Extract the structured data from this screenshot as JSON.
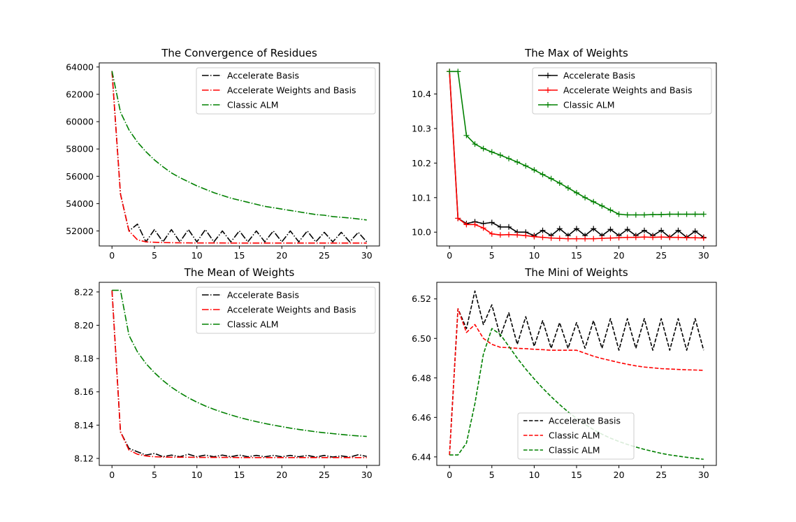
{
  "chart_data": [
    {
      "type": "line",
      "title": "The Convergence of Residues",
      "xlabel": "",
      "ylabel": "",
      "xlim": [
        -1.5,
        31.5
      ],
      "ylim": [
        50900,
        64300
      ],
      "xticks": [
        0,
        5,
        10,
        15,
        20,
        25,
        30
      ],
      "yticks": [
        52000,
        54000,
        56000,
        58000,
        60000,
        62000,
        64000
      ],
      "ytick_labels": [
        "52000",
        "54000",
        "56000",
        "58000",
        "60000",
        "62000",
        "64000"
      ],
      "legend_position": "top-right",
      "x": [
        0,
        1,
        2,
        3,
        4,
        5,
        6,
        7,
        8,
        9,
        10,
        11,
        12,
        13,
        14,
        15,
        16,
        17,
        18,
        19,
        20,
        21,
        22,
        23,
        24,
        25,
        26,
        27,
        28,
        29,
        30
      ],
      "series": [
        {
          "name": "Accelerate Basis",
          "color": "#000000",
          "dash": "dashdot",
          "marker": "none",
          "values": [
            63700,
            54700,
            52000,
            52500,
            51200,
            52100,
            51200,
            52100,
            51200,
            52100,
            51200,
            52100,
            51200,
            52000,
            51200,
            52000,
            51200,
            52000,
            51200,
            52000,
            51200,
            52000,
            51200,
            52000,
            51200,
            51900,
            51200,
            51900,
            51200,
            51900,
            51200
          ]
        },
        {
          "name": "Accelerate Weights and Basis",
          "color": "#ff0000",
          "dash": "dashdot",
          "marker": "none",
          "values": [
            63700,
            54700,
            52000,
            51350,
            51200,
            51170,
            51150,
            51140,
            51130,
            51125,
            51120,
            51120,
            51120,
            51120,
            51115,
            51115,
            51115,
            51115,
            51115,
            51115,
            51115,
            51115,
            51115,
            51115,
            51115,
            51115,
            51115,
            51115,
            51115,
            51115,
            51115
          ]
        },
        {
          "name": "Classic ALM",
          "color": "#008000",
          "dash": "dashdot",
          "marker": "none",
          "values": [
            63700,
            60700,
            59400,
            58500,
            57800,
            57200,
            56700,
            56250,
            55900,
            55600,
            55300,
            55050,
            54800,
            54600,
            54400,
            54250,
            54100,
            53950,
            53800,
            53700,
            53600,
            53500,
            53400,
            53300,
            53200,
            53150,
            53050,
            53000,
            52950,
            52880,
            52800
          ]
        }
      ]
    },
    {
      "type": "line",
      "title": "The Max of Weights",
      "xlabel": "",
      "ylabel": "",
      "xlim": [
        -1.5,
        31.5
      ],
      "ylim": [
        9.96,
        10.49
      ],
      "xticks": [
        0,
        5,
        10,
        15,
        20,
        25,
        30
      ],
      "yticks": [
        10.0,
        10.1,
        10.2,
        10.3,
        10.4
      ],
      "ytick_labels": [
        "10.0",
        "10.1",
        "10.2",
        "10.3",
        "10.4"
      ],
      "legend_position": "top-right",
      "x": [
        0,
        1,
        2,
        3,
        4,
        5,
        6,
        7,
        8,
        9,
        10,
        11,
        12,
        13,
        14,
        15,
        16,
        17,
        18,
        19,
        20,
        21,
        22,
        23,
        24,
        25,
        26,
        27,
        28,
        29,
        30
      ],
      "series": [
        {
          "name": "Accelerate Basis",
          "color": "#000000",
          "dash": "solid",
          "marker": "plus",
          "values": [
            10.465,
            10.04,
            10.025,
            10.03,
            10.025,
            10.028,
            10.015,
            10.015,
            10.0,
            10.0,
            9.99,
            10.005,
            9.99,
            10.01,
            9.99,
            10.01,
            9.99,
            10.01,
            9.99,
            10.008,
            9.99,
            10.008,
            9.99,
            10.005,
            9.99,
            10.005,
            9.985,
            10.005,
            9.985,
            10.003,
            9.985
          ]
        },
        {
          "name": "Accelerate Weights and Basis",
          "color": "#ff0000",
          "dash": "solid",
          "marker": "plus",
          "values": [
            10.465,
            10.04,
            10.022,
            10.022,
            10.012,
            9.995,
            9.992,
            9.993,
            9.992,
            9.99,
            9.987,
            9.985,
            9.983,
            9.982,
            9.981,
            9.981,
            9.981,
            9.981,
            9.982,
            9.983,
            9.984,
            9.985,
            9.985,
            9.986,
            9.985,
            9.986,
            9.985,
            9.985,
            9.984,
            9.984,
            9.983
          ]
        },
        {
          "name": "Classic ALM",
          "color": "#008000",
          "dash": "solid",
          "marker": "plus",
          "values": [
            10.465,
            10.465,
            10.28,
            10.255,
            10.242,
            10.232,
            10.223,
            10.213,
            10.203,
            10.192,
            10.18,
            10.167,
            10.155,
            10.142,
            10.128,
            10.114,
            10.1,
            10.088,
            10.076,
            10.064,
            10.052,
            10.05,
            10.05,
            10.05,
            10.051,
            10.051,
            10.052,
            10.052,
            10.052,
            10.052,
            10.052
          ]
        }
      ]
    },
    {
      "type": "line",
      "title": "The Mean of Weights",
      "xlabel": "",
      "ylabel": "",
      "xlim": [
        -1.5,
        31.5
      ],
      "ylim": [
        8.1158,
        8.2258
      ],
      "xticks": [
        0,
        5,
        10,
        15,
        20,
        25,
        30
      ],
      "yticks": [
        8.12,
        8.14,
        8.16,
        8.18,
        8.2,
        8.22
      ],
      "ytick_labels": [
        "8.12",
        "8.14",
        "8.16",
        "8.18",
        "8.20",
        "8.22"
      ],
      "legend_position": "top-right",
      "x": [
        0,
        1,
        2,
        3,
        4,
        5,
        6,
        7,
        8,
        9,
        10,
        11,
        12,
        13,
        14,
        15,
        16,
        17,
        18,
        19,
        20,
        21,
        22,
        23,
        24,
        25,
        26,
        27,
        28,
        29,
        30
      ],
      "series": [
        {
          "name": "Accelerate Basis",
          "color": "#000000",
          "dash": "dashdot",
          "marker": "none",
          "values": [
            8.221,
            8.136,
            8.126,
            8.124,
            8.122,
            8.123,
            8.121,
            8.122,
            8.121,
            8.1225,
            8.121,
            8.122,
            8.121,
            8.122,
            8.121,
            8.122,
            8.121,
            8.1218,
            8.121,
            8.1218,
            8.121,
            8.1218,
            8.121,
            8.1218,
            8.1208,
            8.1218,
            8.1208,
            8.1215,
            8.1208,
            8.1222,
            8.1212
          ]
        },
        {
          "name": "Accelerate Weights and Basis",
          "color": "#ff0000",
          "dash": "dashdot",
          "marker": "none",
          "values": [
            8.221,
            8.136,
            8.125,
            8.1225,
            8.1215,
            8.121,
            8.1208,
            8.1207,
            8.1207,
            8.1207,
            8.1206,
            8.1206,
            8.1206,
            8.1206,
            8.1206,
            8.1205,
            8.1205,
            8.1205,
            8.1205,
            8.1205,
            8.1205,
            8.1205,
            8.1205,
            8.1205,
            8.1205,
            8.1205,
            8.1205,
            8.1205,
            8.1205,
            8.1205,
            8.1205
          ]
        },
        {
          "name": "Classic ALM",
          "color": "#008000",
          "dash": "dashdot",
          "marker": "none",
          "values": [
            8.221,
            8.221,
            8.194,
            8.184,
            8.177,
            8.1715,
            8.1668,
            8.1628,
            8.1594,
            8.1564,
            8.1538,
            8.1515,
            8.1495,
            8.1477,
            8.1461,
            8.1446,
            8.1433,
            8.1421,
            8.141,
            8.14,
            8.1391,
            8.1382,
            8.1374,
            8.1367,
            8.136,
            8.1354,
            8.1349,
            8.1344,
            8.1339,
            8.1335,
            8.1332
          ]
        }
      ]
    },
    {
      "type": "line",
      "title": "The Mini of Weights",
      "xlabel": "",
      "ylabel": "",
      "xlim": [
        -1.5,
        31.5
      ],
      "ylim": [
        6.4357,
        6.5284
      ],
      "xticks": [
        0,
        5,
        10,
        15,
        20,
        25,
        30
      ],
      "yticks": [
        6.44,
        6.46,
        6.48,
        6.5,
        6.52
      ],
      "ytick_labels": [
        "6.44",
        "6.46",
        "6.48",
        "6.50",
        "6.52"
      ],
      "legend_position": "lower-center",
      "x": [
        0,
        1,
        2,
        3,
        4,
        5,
        6,
        7,
        8,
        9,
        10,
        11,
        12,
        13,
        14,
        15,
        16,
        17,
        18,
        19,
        20,
        21,
        22,
        23,
        24,
        25,
        26,
        27,
        28,
        29,
        30
      ],
      "series": [
        {
          "name": "Accelerate Basis",
          "color": "#000000",
          "dash": "dashed",
          "marker": "none",
          "values": [
            6.441,
            6.515,
            6.505,
            6.524,
            6.507,
            6.517,
            6.501,
            6.513,
            6.497,
            6.511,
            6.496,
            6.509,
            6.495,
            6.508,
            6.495,
            6.508,
            6.495,
            6.509,
            6.495,
            6.51,
            6.494,
            6.51,
            6.495,
            6.51,
            6.494,
            6.51,
            6.494,
            6.51,
            6.494,
            6.51,
            6.494
          ]
        },
        {
          "name": "Classic ALM",
          "color": "#ff0000",
          "dash": "dashed",
          "marker": "none",
          "values": [
            6.441,
            6.515,
            6.503,
            6.507,
            6.5,
            6.497,
            6.4955,
            6.4953,
            6.495,
            6.4948,
            6.4945,
            6.4943,
            6.494,
            6.494,
            6.494,
            6.494,
            6.4925,
            6.491,
            6.4898,
            6.4888,
            6.4878,
            6.4869,
            6.4861,
            6.4855,
            6.4851,
            6.4847,
            6.4845,
            6.4843,
            6.4841,
            6.484,
            6.4838
          ]
        },
        {
          "name": "Classic ALM",
          "color": "#008000",
          "dash": "dashed",
          "marker": "none",
          "values": [
            6.441,
            6.441,
            6.447,
            6.467,
            6.492,
            6.505,
            6.502,
            6.496,
            6.49,
            6.4845,
            6.4795,
            6.4748,
            6.4705,
            6.4665,
            6.4628,
            6.4595,
            6.4565,
            6.4538,
            6.4515,
            6.4495,
            6.4478,
            6.4463,
            6.445,
            6.4438,
            6.4428,
            6.4418,
            6.441,
            6.4404,
            6.4398,
            6.4393,
            6.4388
          ]
        }
      ]
    }
  ]
}
